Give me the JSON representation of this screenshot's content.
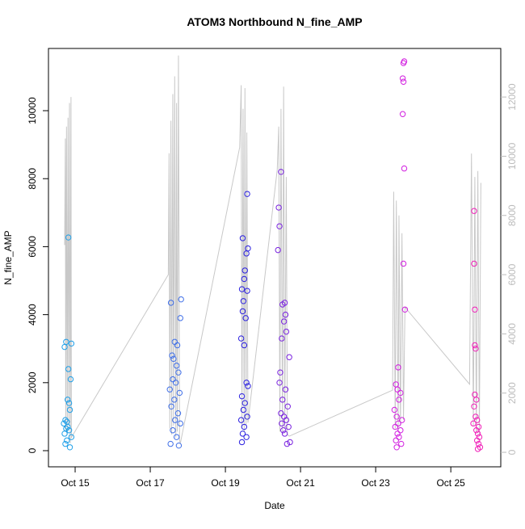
{
  "chart_data": {
    "type": "scatter",
    "title": "ATOM3 Northbound N_fine_AMP",
    "x_label": "Date",
    "y_label": "N_fine_AMP",
    "xlim": [
      14.29,
      26.33
    ],
    "xticks": [
      {
        "value": 15,
        "label": "Oct 15"
      },
      {
        "value": 17,
        "label": "Oct 17"
      },
      {
        "value": 19,
        "label": "Oct 19"
      },
      {
        "value": 21,
        "label": "Oct 21"
      },
      {
        "value": 23,
        "label": "Oct 23"
      },
      {
        "value": 25,
        "label": "Oct 25"
      }
    ],
    "ylim": [
      -475,
      11830
    ],
    "yticks": [
      0,
      2000,
      4000,
      6000,
      8000,
      10000
    ],
    "y2lim": [
      -490,
      13640
    ],
    "y2ticks": [
      0,
      2000,
      4000,
      6000,
      8000,
      10000,
      12000
    ],
    "series": [
      {
        "color": "#1e9fe8",
        "x": [
          14.82,
          14.72,
          14.76,
          14.9,
          14.82,
          14.88,
          14.8,
          14.84,
          14.86,
          14.74,
          14.78,
          14.7,
          14.8,
          14.76,
          14.84,
          14.72,
          14.9,
          14.78,
          14.74,
          14.86
        ],
        "values": [
          6270,
          3050,
          3200,
          3150,
          2400,
          2100,
          1500,
          1400,
          1200,
          900,
          850,
          800,
          700,
          650,
          600,
          500,
          400,
          300,
          200,
          100
        ]
      },
      {
        "color": "#3f6fe8",
        "x": [
          17.82,
          17.55,
          17.8,
          17.65,
          17.72,
          17.58,
          17.62,
          17.7,
          17.75,
          17.6,
          17.68,
          17.52,
          17.78,
          17.64,
          17.56,
          17.74,
          17.66,
          17.8,
          17.6,
          17.7,
          17.54,
          17.76
        ],
        "values": [
          4450,
          4350,
          3900,
          3200,
          3100,
          2800,
          2700,
          2500,
          2300,
          2100,
          2000,
          1800,
          1700,
          1500,
          1300,
          1100,
          900,
          800,
          600,
          400,
          200,
          150
        ]
      },
      {
        "color": "#2a1fe0",
        "x": [
          19.58,
          19.46,
          19.6,
          19.56,
          19.52,
          19.5,
          19.44,
          19.58,
          19.48,
          19.46,
          19.54,
          19.42,
          19.5,
          19.56,
          19.6,
          19.44,
          19.52,
          19.48,
          19.58,
          19.42,
          19.5,
          19.46,
          19.56,
          19.44
        ],
        "values": [
          7550,
          6250,
          5950,
          5800,
          5300,
          5050,
          4750,
          4700,
          4400,
          4100,
          3900,
          3300,
          3100,
          2000,
          1900,
          1600,
          1400,
          1200,
          1000,
          900,
          700,
          500,
          400,
          250
        ]
      },
      {
        "color": "#7a22e0",
        "x": [
          20.48,
          20.42,
          20.44,
          20.4,
          20.58,
          20.52,
          20.6,
          20.56,
          20.62,
          20.5,
          20.7,
          20.46,
          20.44,
          20.6,
          20.52,
          20.66,
          20.48,
          20.56,
          20.62,
          20.5,
          20.68,
          20.54,
          20.72,
          20.58,
          20.64
        ],
        "values": [
          8200,
          7150,
          6600,
          5900,
          4350,
          4300,
          4000,
          3800,
          3500,
          3300,
          2750,
          2300,
          2000,
          1800,
          1500,
          1300,
          1100,
          1000,
          900,
          800,
          700,
          600,
          250,
          500,
          200
        ]
      },
      {
        "color": "#d21fe0",
        "x": [
          23.76,
          23.74,
          23.72,
          23.74,
          23.72,
          23.76,
          23.74,
          23.78,
          23.6,
          23.54,
          23.58,
          23.66,
          23.62,
          23.5,
          23.56,
          23.7,
          23.6,
          23.52,
          23.66,
          23.58,
          23.62,
          23.54,
          23.68,
          23.56
        ],
        "values": [
          11450,
          11400,
          10950,
          10850,
          9900,
          8300,
          5500,
          4150,
          2450,
          1950,
          1800,
          1700,
          1500,
          1200,
          1000,
          900,
          800,
          700,
          600,
          500,
          400,
          300,
          200,
          100
        ]
      },
      {
        "color": "#f01fb8",
        "x": [
          25.62,
          25.62,
          25.64,
          25.64,
          25.66,
          25.64,
          25.68,
          25.62,
          25.66,
          25.7,
          25.6,
          25.74,
          25.68,
          25.72,
          25.76,
          25.7,
          25.74,
          25.78,
          25.72
        ],
        "values": [
          7050,
          5500,
          4150,
          3100,
          3000,
          1650,
          1500,
          1300,
          1000,
          900,
          800,
          700,
          600,
          500,
          400,
          300,
          200,
          100,
          50
        ]
      },
      {
        "color": "#c8c8c8",
        "axis": "y2",
        "type": "line",
        "x": [
          14.72,
          14.74,
          14.75,
          14.77,
          14.79,
          14.81,
          14.83,
          14.85,
          14.87,
          14.89,
          14.9,
          17.48,
          17.5,
          17.52,
          17.55,
          17.57,
          17.6,
          17.62,
          17.65,
          17.68,
          17.7,
          17.72,
          17.75,
          17.78,
          17.8,
          19.38,
          19.42,
          19.44,
          19.47,
          19.5,
          19.52,
          19.55,
          19.57,
          19.6,
          20.38,
          20.42,
          20.45,
          20.48,
          20.52,
          20.55,
          20.58,
          20.62,
          20.65,
          20.7,
          23.45,
          23.48,
          23.52,
          23.55,
          23.6,
          23.62,
          23.66,
          23.7,
          23.74,
          23.78,
          25.5,
          25.55,
          25.6,
          25.64,
          25.68,
          25.72,
          25.76,
          25.8
        ],
        "values": [
          7000,
          10600,
          700,
          11000,
          600,
          11300,
          900,
          11800,
          300,
          12000,
          500,
          6000,
          10100,
          800,
          11200,
          600,
          12100,
          900,
          12700,
          500,
          11800,
          700,
          13400,
          400,
          300,
          10300,
          12400,
          800,
          11600,
          700,
          12300,
          900,
          10800,
          1000,
          9550,
          11000,
          700,
          11600,
          600,
          12350,
          800,
          9300,
          600,
          545,
          2100,
          8800,
          800,
          8500,
          700,
          8000,
          900,
          7400,
          1100,
          4900,
          2300,
          10090,
          900,
          9300,
          700,
          9500,
          600,
          9100
        ]
      }
    ]
  }
}
